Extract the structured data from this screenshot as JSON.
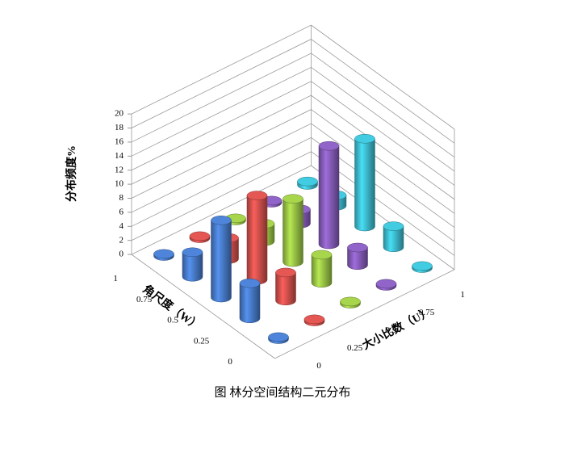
{
  "chart_data": {
    "type": "bar3d",
    "caption": "图  林分空间结构二元分布",
    "x_label": "大小比数（U）",
    "y_label": "角尺度（W）",
    "z_label": "分布频度%",
    "x_categories": [
      0,
      0.25,
      0.5,
      0.75,
      1
    ],
    "y_categories": [
      0,
      0.25,
      0.5,
      0.75,
      1
    ],
    "zlim": [
      0,
      20
    ],
    "zticks": [
      0,
      2,
      4,
      6,
      8,
      10,
      12,
      14,
      16,
      18,
      20
    ],
    "grid": true,
    "series": [
      {
        "color": "#4a7fd0",
        "values": [
          0.3,
          5,
          11,
          3.5,
          0.3
        ]
      },
      {
        "color": "#d9534f",
        "values": [
          0.3,
          4,
          12,
          3,
          0.3
        ]
      },
      {
        "color": "#9fcb48",
        "values": [
          0.3,
          4,
          9,
          2.5,
          0.3
        ]
      },
      {
        "color": "#8a5fbf",
        "values": [
          0.3,
          2.5,
          14,
          2,
          0.3
        ]
      },
      {
        "color": "#3fc2d6",
        "values": [
          0.3,
          3,
          12.5,
          1.5,
          0.5
        ]
      }
    ]
  }
}
